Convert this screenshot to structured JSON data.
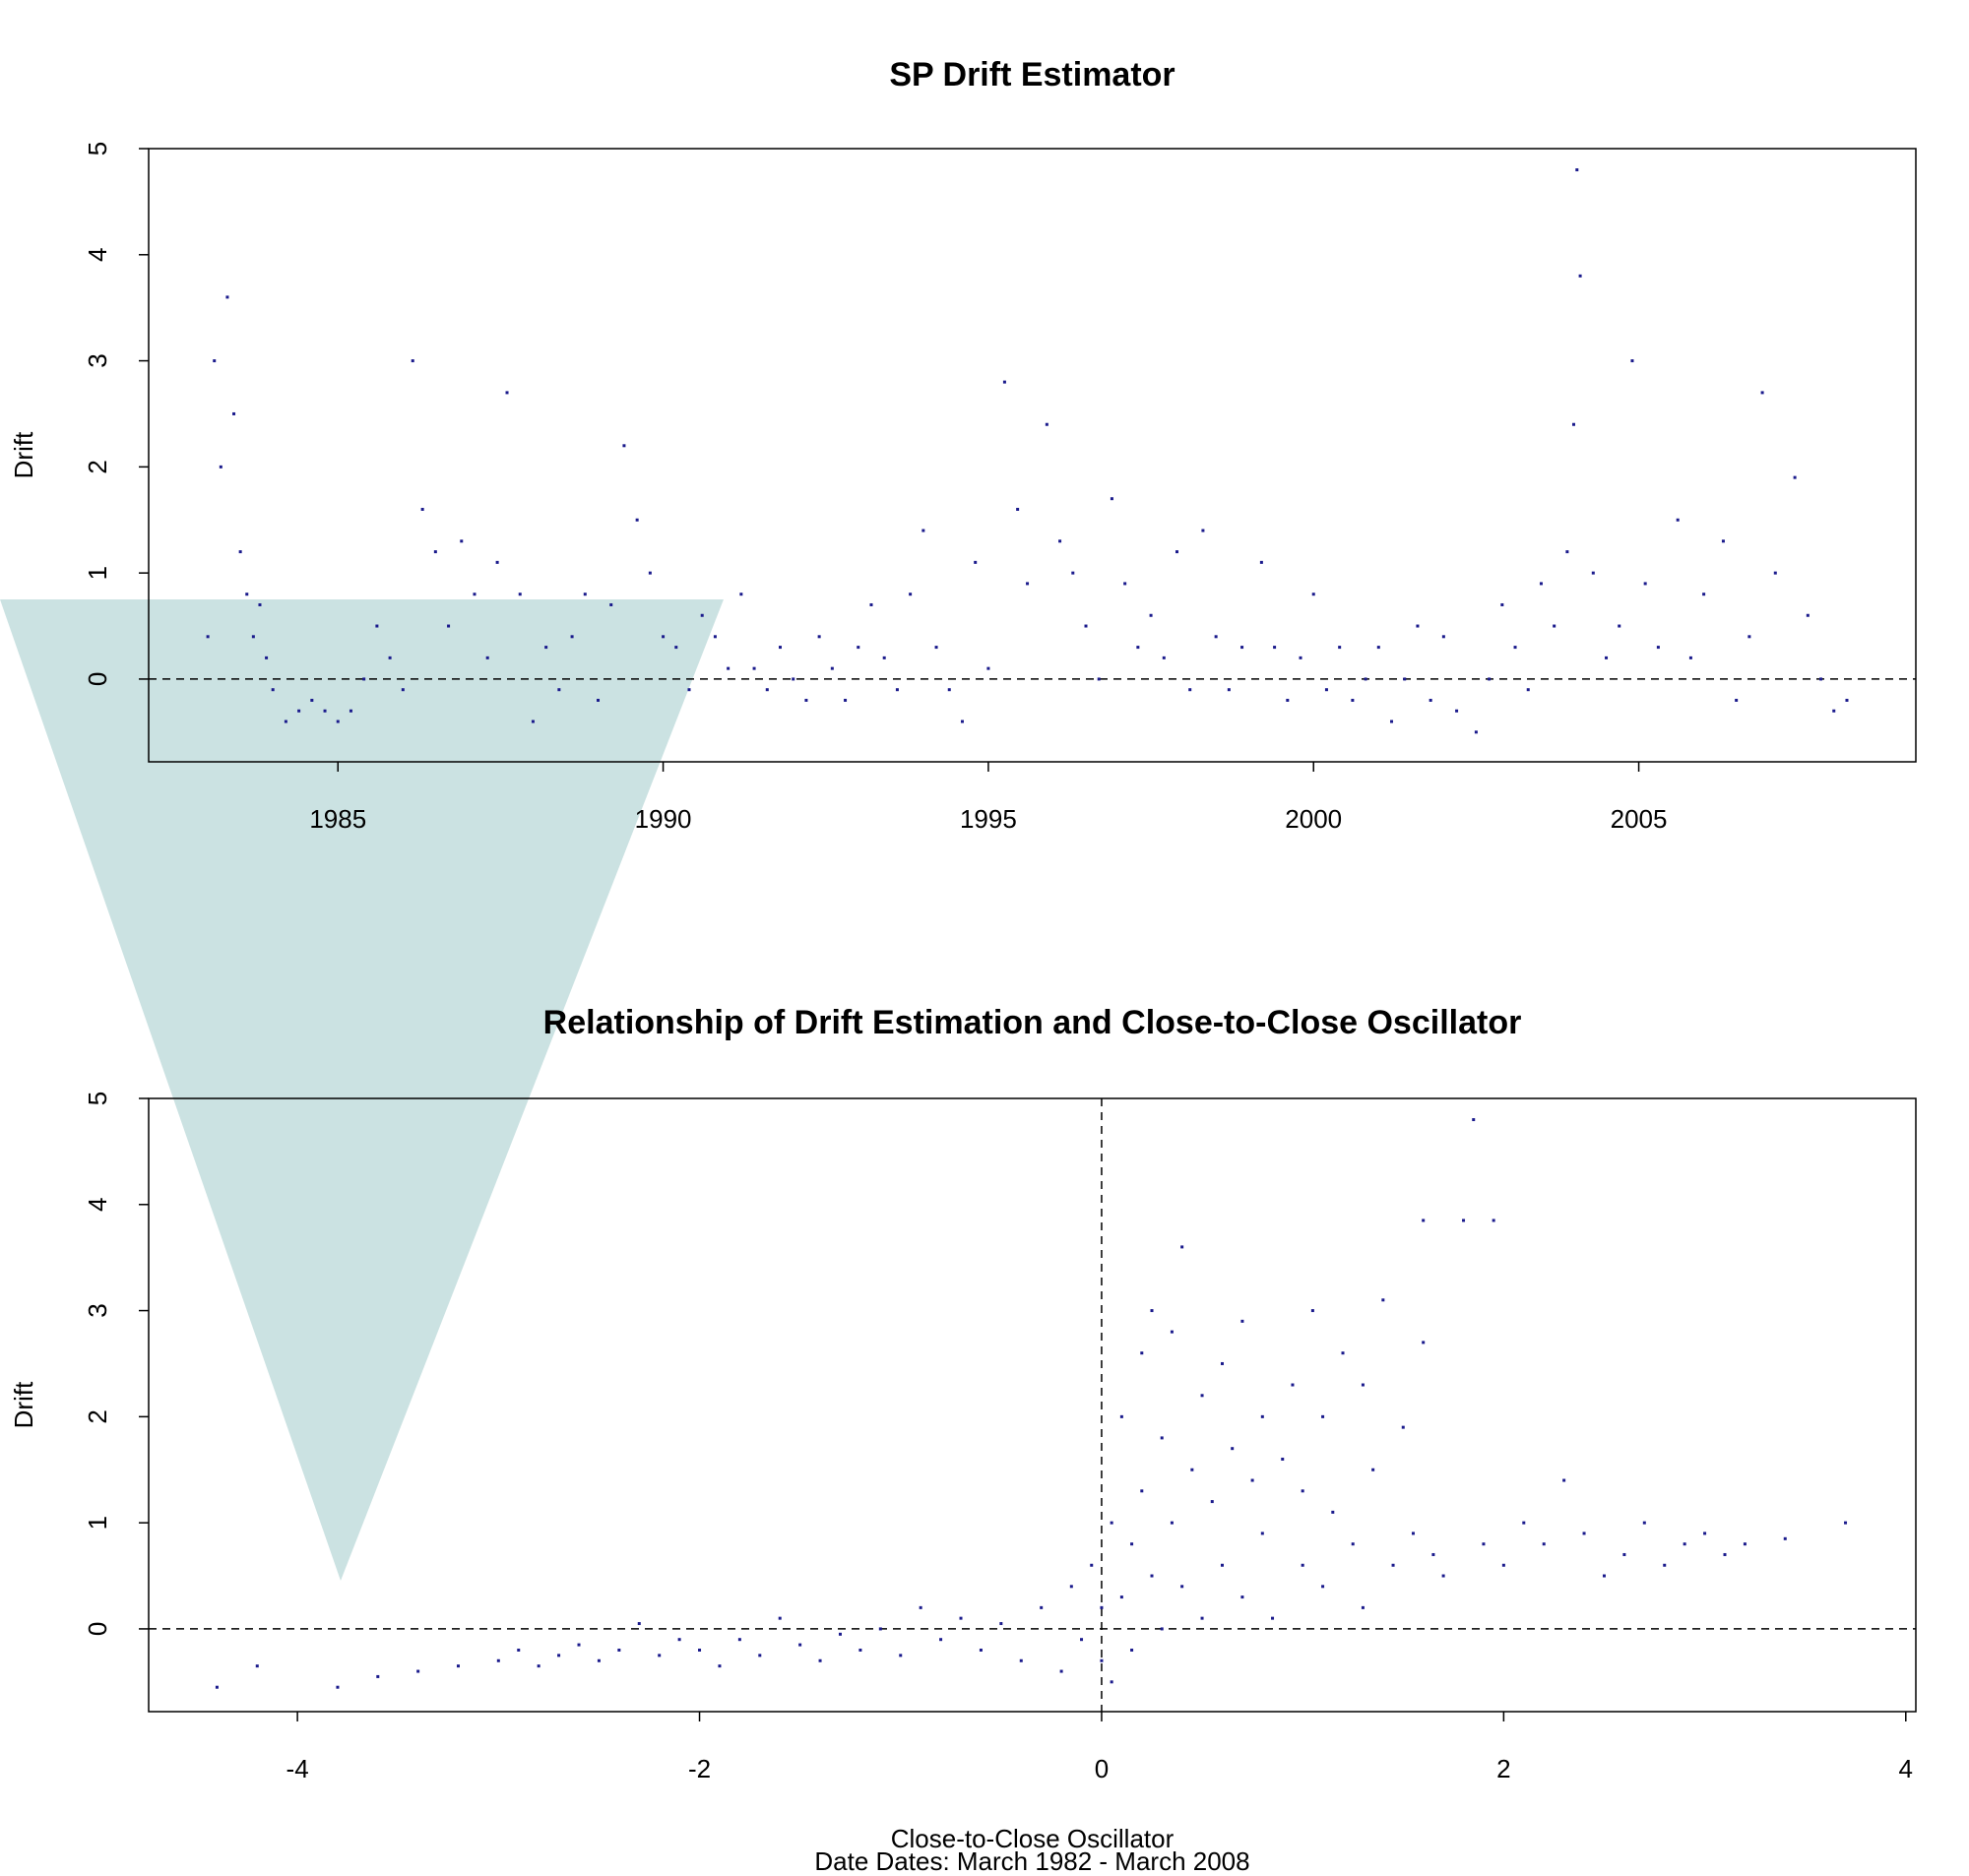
{
  "chart_data": [
    {
      "type": "scatter",
      "title": "SP Drift Estimator",
      "ylabel": "Drift",
      "color": "#1a1a8c",
      "xlim": [
        1982.09,
        2009.26
      ],
      "ylim": [
        -0.78,
        5.0
      ],
      "xticks": [
        1985,
        1990,
        1995,
        2000,
        2005
      ],
      "yticks": [
        0,
        1,
        2,
        3,
        4,
        5
      ],
      "hlines": [
        0
      ],
      "vlines": [],
      "x": [
        1983.0,
        1983.1,
        1983.2,
        1983.3,
        1983.4,
        1983.5,
        1983.6,
        1983.7,
        1983.8,
        1983.9,
        1984.0,
        1984.2,
        1984.4,
        1984.6,
        1984.8,
        1985.0,
        1985.2,
        1985.4,
        1985.6,
        1985.8,
        1986.0,
        1986.15,
        1986.3,
        1986.5,
        1986.7,
        1986.9,
        1987.1,
        1987.3,
        1987.45,
        1987.6,
        1987.8,
        1988.0,
        1988.2,
        1988.4,
        1988.6,
        1988.8,
        1989.0,
        1989.2,
        1989.4,
        1989.6,
        1989.8,
        1990.0,
        1990.2,
        1990.4,
        1990.6,
        1990.8,
        1991.0,
        1991.2,
        1991.4,
        1991.6,
        1991.8,
        1992.0,
        1992.2,
        1992.4,
        1992.6,
        1992.8,
        1993.0,
        1993.2,
        1993.4,
        1993.6,
        1993.8,
        1994.0,
        1994.2,
        1994.4,
        1994.6,
        1994.8,
        1995.0,
        1995.25,
        1995.45,
        1995.6,
        1995.9,
        1996.1,
        1996.3,
        1996.5,
        1996.7,
        1996.9,
        1997.1,
        1997.3,
        1997.5,
        1997.7,
        1997.9,
        1998.1,
        1998.3,
        1998.5,
        1998.7,
        1998.9,
        1999.2,
        1999.4,
        1999.6,
        1999.8,
        2000.0,
        2000.2,
        2000.4,
        2000.6,
        2000.8,
        2001.0,
        2001.2,
        2001.4,
        2001.6,
        2001.8,
        2002.0,
        2002.2,
        2002.5,
        2002.7,
        2002.9,
        2003.1,
        2003.3,
        2003.5,
        2003.7,
        2003.9,
        2004.0,
        2004.05,
        2004.1,
        2004.3,
        2004.5,
        2004.7,
        2004.9,
        2005.1,
        2005.3,
        2005.6,
        2005.8,
        2006.0,
        2006.3,
        2006.5,
        2006.7,
        2006.9,
        2007.1,
        2007.4,
        2007.6,
        2007.8,
        2008.0,
        2008.2
      ],
      "values": [
        0.4,
        3.0,
        2.0,
        3.6,
        2.5,
        1.2,
        0.8,
        0.4,
        0.7,
        0.2,
        -0.1,
        -0.4,
        -0.3,
        -0.2,
        -0.3,
        -0.4,
        -0.3,
        0.0,
        0.5,
        0.2,
        -0.1,
        3.0,
        1.6,
        1.2,
        0.5,
        1.3,
        0.8,
        0.2,
        1.1,
        2.7,
        0.8,
        -0.4,
        0.3,
        -0.1,
        0.4,
        0.8,
        -0.2,
        0.7,
        2.2,
        1.5,
        1.0,
        0.4,
        0.3,
        -0.1,
        0.6,
        0.4,
        0.1,
        0.8,
        0.1,
        -0.1,
        0.3,
        0.0,
        -0.2,
        0.4,
        0.1,
        -0.2,
        0.3,
        0.7,
        0.2,
        -0.1,
        0.8,
        1.4,
        0.3,
        -0.1,
        -0.4,
        1.1,
        0.1,
        2.8,
        1.6,
        0.9,
        2.4,
        1.3,
        1.0,
        0.5,
        0.0,
        1.7,
        0.9,
        0.3,
        0.6,
        0.2,
        1.2,
        -0.1,
        1.4,
        0.4,
        -0.1,
        0.3,
        1.1,
        0.3,
        -0.2,
        0.2,
        0.8,
        -0.1,
        0.3,
        -0.2,
        0.0,
        0.3,
        -0.4,
        0.0,
        0.5,
        -0.2,
        0.4,
        -0.3,
        -0.5,
        0.0,
        0.7,
        0.3,
        -0.1,
        0.9,
        0.5,
        1.2,
        2.4,
        4.8,
        3.8,
        1.0,
        0.2,
        0.5,
        3.0,
        0.9,
        0.3,
        1.5,
        0.2,
        0.8,
        1.3,
        -0.2,
        0.4,
        2.7,
        1.0,
        1.9,
        0.6,
        0.0,
        -0.3,
        -0.2
      ]
    },
    {
      "type": "scatter",
      "title": "Relationship of Drift Estimation and Close-to-Close Oscillator",
      "ylabel": "Drift",
      "xlabel": "Close-to-Close Oscillator",
      "subtitle": "Date Dates: March 1982 - March 2008",
      "color": "#1a1a8c",
      "xlim": [
        -4.74,
        4.05
      ],
      "ylim": [
        -0.78,
        5.0
      ],
      "xticks": [
        -4,
        -2,
        0,
        2,
        4
      ],
      "yticks": [
        0,
        1,
        2,
        3,
        4,
        5
      ],
      "hlines": [
        0
      ],
      "vlines": [
        0
      ],
      "x": [
        -4.4,
        -4.2,
        -3.8,
        -3.6,
        -3.4,
        -3.2,
        -3.0,
        -2.9,
        -2.8,
        -2.7,
        -2.6,
        -2.5,
        -2.4,
        -2.3,
        -2.2,
        -2.1,
        -2.0,
        -1.9,
        -1.8,
        -1.7,
        -1.6,
        -1.5,
        -1.4,
        -1.3,
        -1.2,
        -1.1,
        -1.0,
        -0.9,
        -0.8,
        -0.7,
        -0.6,
        -0.5,
        -0.4,
        -0.3,
        -0.2,
        -0.15,
        -0.1,
        -0.05,
        0.0,
        0.0,
        0.05,
        0.05,
        0.1,
        0.1,
        0.15,
        0.15,
        0.2,
        0.2,
        0.25,
        0.25,
        0.3,
        0.3,
        0.35,
        0.35,
        0.4,
        0.4,
        0.45,
        0.5,
        0.5,
        0.55,
        0.6,
        0.6,
        0.65,
        0.7,
        0.7,
        0.75,
        0.8,
        0.8,
        0.85,
        0.9,
        0.95,
        1.0,
        1.0,
        1.05,
        1.1,
        1.1,
        1.15,
        1.2,
        1.25,
        1.3,
        1.3,
        1.35,
        1.4,
        1.45,
        1.5,
        1.55,
        1.6,
        1.6,
        1.65,
        1.7,
        1.8,
        1.85,
        1.9,
        1.95,
        2.0,
        2.1,
        2.2,
        2.3,
        2.4,
        2.5,
        2.6,
        2.7,
        2.8,
        2.9,
        3.0,
        3.1,
        3.2,
        3.4,
        3.7
      ],
      "values": [
        -0.55,
        -0.35,
        -0.55,
        -0.45,
        -0.4,
        -0.35,
        -0.3,
        -0.2,
        -0.35,
        -0.25,
        -0.15,
        -0.3,
        -0.2,
        0.05,
        -0.25,
        -0.1,
        -0.2,
        -0.35,
        -0.1,
        -0.25,
        0.1,
        -0.15,
        -0.3,
        -0.05,
        -0.2,
        0.0,
        -0.25,
        0.2,
        -0.1,
        0.1,
        -0.2,
        0.05,
        -0.3,
        0.2,
        -0.4,
        0.4,
        -0.1,
        0.6,
        -0.3,
        0.2,
        1.0,
        -0.5,
        0.3,
        2.0,
        0.8,
        -0.2,
        2.6,
        1.3,
        0.5,
        3.0,
        0.0,
        1.8,
        2.8,
        1.0,
        3.6,
        0.4,
        1.5,
        2.2,
        0.1,
        1.2,
        2.5,
        0.6,
        1.7,
        2.9,
        0.3,
        1.4,
        2.0,
        0.9,
        0.1,
        1.6,
        2.3,
        0.6,
        1.3,
        3.0,
        2.0,
        0.4,
        1.1,
        2.6,
        0.8,
        2.3,
        0.2,
        1.5,
        3.1,
        0.6,
        1.9,
        0.9,
        3.85,
        2.7,
        0.7,
        0.5,
        3.85,
        4.8,
        0.8,
        3.85,
        0.6,
        1.0,
        0.8,
        1.4,
        0.9,
        0.5,
        0.7,
        1.0,
        0.6,
        0.8,
        0.9,
        0.7,
        0.8,
        0.85,
        1.0
      ]
    }
  ]
}
